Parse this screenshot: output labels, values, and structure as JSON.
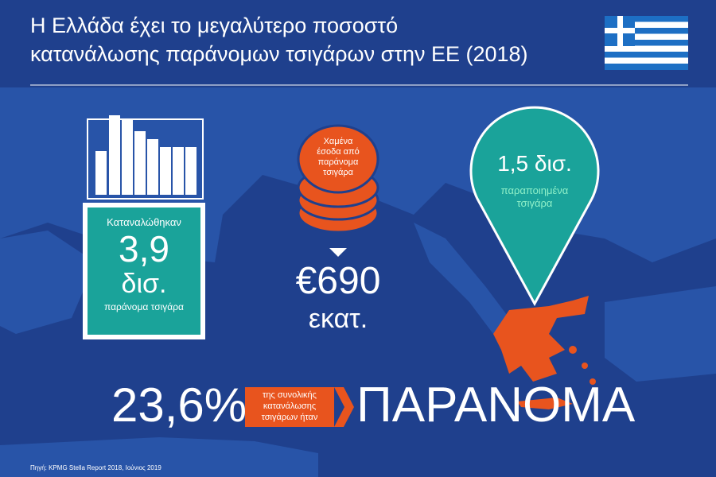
{
  "header": {
    "title": [
      "Η Ελλάδα έχει το μεγαλύτερο ποσοστό",
      "κατανάλωσης παράνομων τσιγάρων στην ΕΕ (2018)"
    ]
  },
  "pack": {
    "label": "Καταναλώθηκαν",
    "number": "3,9",
    "unit": "δισ.",
    "caption": "παράνομα τσιγάρα"
  },
  "coins": {
    "label": [
      "Χαμένα",
      "έσοδα από",
      "παράνομα",
      "τσιγάρα"
    ],
    "number": "€690",
    "unit": "εκατ."
  },
  "pin": {
    "number": "1,5 δισ.",
    "caption": [
      "παραποιημένα",
      "τσιγάρα"
    ]
  },
  "share": {
    "number": "23,6%",
    "label": [
      "της συνολικής",
      "κατανάλωσης",
      "τσιγάρων ήταν"
    ],
    "word": "ΠΑΡΑΝΟΜΑ"
  },
  "source": "Πηγή: KPMG Stella Report 2018, Ιούνιος 2019"
}
